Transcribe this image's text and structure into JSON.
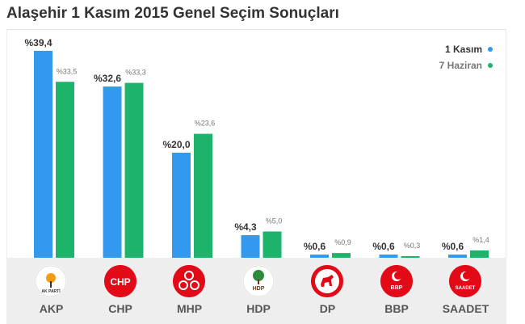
{
  "title": "Alaşehir 1 Kasım 2015 Genel Seçim Sonuçları",
  "legend": {
    "series1": {
      "label": "1 Kasım",
      "color": "#3399ee"
    },
    "series2": {
      "label": "7 Haziran",
      "color": "#1eb36b"
    }
  },
  "chart_data": {
    "type": "bar",
    "title": "Alaşehir 1 Kasım 2015 Genel Seçim Sonuçları",
    "categories": [
      "AKP",
      "CHP",
      "MHP",
      "HDP",
      "DP",
      "BBP",
      "SAADET"
    ],
    "series": [
      {
        "name": "1 Kasım",
        "color": "#3399ee",
        "values": [
          39.4,
          32.6,
          20.0,
          4.3,
          0.6,
          0.6,
          0.6
        ],
        "labels": [
          "%39,4",
          "%32,6",
          "%20,0",
          "%4,3",
          "%0,6",
          "%0,6",
          "%0,6"
        ]
      },
      {
        "name": "7 Haziran",
        "color": "#1eb36b",
        "values": [
          33.5,
          33.3,
          23.6,
          5.0,
          0.9,
          0.3,
          1.4
        ],
        "labels": [
          "%33,5",
          "%33,3",
          "%23,6",
          "%5,0",
          "%0,9",
          "%0,3",
          "%1,4"
        ]
      }
    ],
    "ylim": [
      0,
      45
    ],
    "legend_position": "top-right",
    "grid": false
  },
  "parties": [
    {
      "name": "AKP",
      "logo": "akp-logo-icon",
      "logo_text": "AK PARTİ",
      "logo_color": "#ffffff"
    },
    {
      "name": "CHP",
      "logo": "chp-logo-icon",
      "logo_text": "CHP",
      "logo_color": "#e30a17"
    },
    {
      "name": "MHP",
      "logo": "mhp-logo-icon",
      "logo_text": "",
      "logo_color": "#e30a17"
    },
    {
      "name": "HDP",
      "logo": "hdp-logo-icon",
      "logo_text": "HDP",
      "logo_color": "#ffffff"
    },
    {
      "name": "DP",
      "logo": "dp-logo-icon",
      "logo_text": "",
      "logo_color": "#e30a17"
    },
    {
      "name": "BBP",
      "logo": "bbp-logo-icon",
      "logo_text": "BBP",
      "logo_color": "#e30a17"
    },
    {
      "name": "SAADET",
      "logo": "saadet-logo-icon",
      "logo_text": "SAADET",
      "logo_color": "#e30a17"
    }
  ]
}
